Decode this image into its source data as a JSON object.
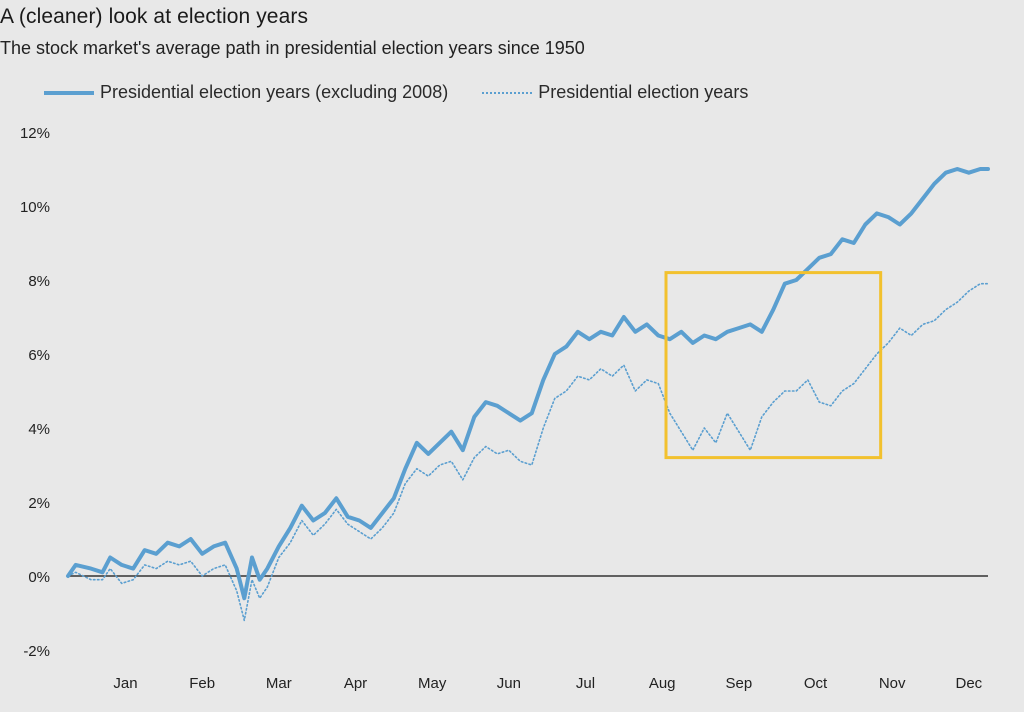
{
  "header": {
    "title": "A (cleaner) look at election years",
    "subtitle": "The stock market's average path in presidential election years since 1950"
  },
  "colors": {
    "line": "#5b9fd0",
    "highlight_box": "#f2c12e",
    "zero_line": "#333333",
    "background": "#e8e8e8"
  },
  "chart_data": {
    "type": "line",
    "title": "A (cleaner) look at election years",
    "subtitle": "The stock market's average path in presidential election years since 1950",
    "x_axis_unit": "month of year (0 = Jan 1, 12 = Dec 31)",
    "x_tick_labels": [
      "Jan",
      "Feb",
      "Mar",
      "Apr",
      "May",
      "Jun",
      "Jul",
      "Aug",
      "Sep",
      "Oct",
      "Nov",
      "Dec"
    ],
    "y_tick_labels": [
      "12%",
      "10%",
      "8%",
      "6%",
      "4%",
      "2%",
      "0%",
      "-2%"
    ],
    "ylim": [
      -2,
      12
    ],
    "xlim": [
      0,
      12
    ],
    "legend_position": "top-left",
    "highlight": {
      "x": [
        7.8,
        10.6
      ],
      "y": [
        3.2,
        8.2
      ]
    },
    "series": [
      {
        "name": "Presidential election years (excluding 2008)",
        "style": "solid",
        "x": [
          0,
          0.1,
          0.3,
          0.45,
          0.55,
          0.7,
          0.85,
          1.0,
          1.15,
          1.3,
          1.45,
          1.6,
          1.75,
          1.9,
          2.05,
          2.2,
          2.3,
          2.4,
          2.5,
          2.6,
          2.75,
          2.9,
          3.05,
          3.2,
          3.35,
          3.5,
          3.65,
          3.8,
          3.95,
          4.1,
          4.25,
          4.4,
          4.55,
          4.7,
          4.85,
          5.0,
          5.15,
          5.3,
          5.45,
          5.6,
          5.75,
          5.9,
          6.05,
          6.2,
          6.35,
          6.5,
          6.65,
          6.8,
          6.95,
          7.1,
          7.25,
          7.4,
          7.55,
          7.7,
          7.85,
          8.0,
          8.15,
          8.3,
          8.45,
          8.6,
          8.75,
          8.9,
          9.05,
          9.2,
          9.35,
          9.5,
          9.65,
          9.8,
          9.95,
          10.1,
          10.25,
          10.4,
          10.55,
          10.7,
          10.85,
          11.0,
          11.15,
          11.3,
          11.45,
          11.6,
          11.75,
          11.9,
          12.0
        ],
        "values": [
          0.0,
          0.3,
          0.2,
          0.1,
          0.5,
          0.3,
          0.2,
          0.7,
          0.6,
          0.9,
          0.8,
          1.0,
          0.6,
          0.8,
          0.9,
          0.2,
          -0.6,
          0.5,
          -0.1,
          0.2,
          0.8,
          1.3,
          1.9,
          1.5,
          1.7,
          2.1,
          1.6,
          1.5,
          1.3,
          1.7,
          2.1,
          2.9,
          3.6,
          3.3,
          3.6,
          3.9,
          3.4,
          4.3,
          4.7,
          4.6,
          4.4,
          4.2,
          4.4,
          5.3,
          6.0,
          6.2,
          6.6,
          6.4,
          6.6,
          6.5,
          7.0,
          6.6,
          6.8,
          6.5,
          6.4,
          6.6,
          6.3,
          6.5,
          6.4,
          6.6,
          6.7,
          6.8,
          6.6,
          7.2,
          7.9,
          8.0,
          8.3,
          8.6,
          8.7,
          9.1,
          9.0,
          9.5,
          9.8,
          9.7,
          9.5,
          9.8,
          10.2,
          10.6,
          10.9,
          11.0,
          10.9,
          11.0,
          11.0
        ]
      },
      {
        "name": "Presidential election years",
        "style": "dotted",
        "x": [
          0,
          0.1,
          0.3,
          0.45,
          0.55,
          0.7,
          0.85,
          1.0,
          1.15,
          1.3,
          1.45,
          1.6,
          1.75,
          1.9,
          2.05,
          2.2,
          2.3,
          2.4,
          2.5,
          2.6,
          2.75,
          2.9,
          3.05,
          3.2,
          3.35,
          3.5,
          3.65,
          3.8,
          3.95,
          4.1,
          4.25,
          4.4,
          4.55,
          4.7,
          4.85,
          5.0,
          5.15,
          5.3,
          5.45,
          5.6,
          5.75,
          5.9,
          6.05,
          6.2,
          6.35,
          6.5,
          6.65,
          6.8,
          6.95,
          7.1,
          7.25,
          7.4,
          7.55,
          7.7,
          7.85,
          8.0,
          8.15,
          8.3,
          8.45,
          8.6,
          8.75,
          8.9,
          9.05,
          9.2,
          9.35,
          9.5,
          9.65,
          9.8,
          9.95,
          10.1,
          10.25,
          10.4,
          10.55,
          10.7,
          10.85,
          11.0,
          11.15,
          11.3,
          11.45,
          11.6,
          11.75,
          11.9,
          12.0
        ],
        "values": [
          0.0,
          0.1,
          -0.1,
          -0.1,
          0.2,
          -0.2,
          -0.1,
          0.3,
          0.2,
          0.4,
          0.3,
          0.4,
          0.0,
          0.2,
          0.3,
          -0.4,
          -1.2,
          -0.1,
          -0.6,
          -0.3,
          0.5,
          0.9,
          1.5,
          1.1,
          1.4,
          1.8,
          1.4,
          1.2,
          1.0,
          1.3,
          1.7,
          2.5,
          2.9,
          2.7,
          3.0,
          3.1,
          2.6,
          3.2,
          3.5,
          3.3,
          3.4,
          3.1,
          3.0,
          4.0,
          4.8,
          5.0,
          5.4,
          5.3,
          5.6,
          5.4,
          5.7,
          5.0,
          5.3,
          5.2,
          4.4,
          3.9,
          3.4,
          4.0,
          3.6,
          4.4,
          3.9,
          3.4,
          4.3,
          4.7,
          5.0,
          5.0,
          5.3,
          4.7,
          4.6,
          5.0,
          5.2,
          5.6,
          6.0,
          6.3,
          6.7,
          6.5,
          6.8,
          6.9,
          7.2,
          7.4,
          7.7,
          7.9,
          7.9
        ]
      }
    ]
  },
  "legend": {
    "series_a": "Presidential election years (excluding 2008)",
    "series_b": "Presidential election years"
  }
}
